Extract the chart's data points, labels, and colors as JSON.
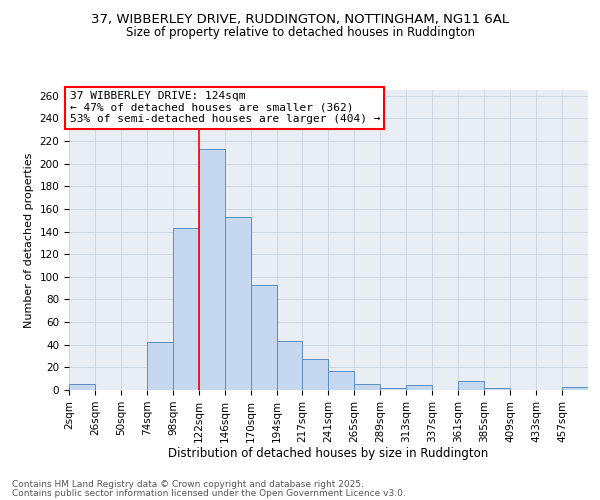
{
  "title1": "37, WIBBERLEY DRIVE, RUDDINGTON, NOTTINGHAM, NG11 6AL",
  "title2": "Size of property relative to detached houses in Ruddington",
  "xlabel": "Distribution of detached houses by size in Ruddington",
  "ylabel": "Number of detached properties",
  "bin_edges": [
    2,
    26,
    50,
    74,
    98,
    122,
    146,
    170,
    194,
    217,
    241,
    265,
    289,
    313,
    337,
    361,
    385,
    409,
    433,
    457,
    481
  ],
  "bar_heights": [
    5,
    0,
    0,
    42,
    143,
    213,
    153,
    93,
    43,
    27,
    17,
    5,
    2,
    4,
    0,
    8,
    2,
    0,
    0,
    3
  ],
  "bar_color": "#c5d8f0",
  "bar_edge_color": "#5b8ec5",
  "vline_x": 122,
  "vline_color": "red",
  "annotation_text": "37 WIBBERLEY DRIVE: 124sqm\n← 47% of detached houses are smaller (362)\n53% of semi-detached houses are larger (404) →",
  "annotation_box_color": "red",
  "ylim": [
    0,
    265
  ],
  "yticks": [
    0,
    20,
    40,
    60,
    80,
    100,
    120,
    140,
    160,
    180,
    200,
    220,
    240,
    260
  ],
  "grid_color": "#c8d4e0",
  "bg_color": "#e8eef4",
  "footer1": "Contains HM Land Registry data © Crown copyright and database right 2025.",
  "footer2": "Contains public sector information licensed under the Open Government Licence v3.0.",
  "title_fontsize": 9.5,
  "subtitle_fontsize": 8.5,
  "ylabel_fontsize": 8,
  "xlabel_fontsize": 8.5,
  "footer_fontsize": 6.5,
  "annotation_fontsize": 8,
  "tick_fontsize": 7.5
}
